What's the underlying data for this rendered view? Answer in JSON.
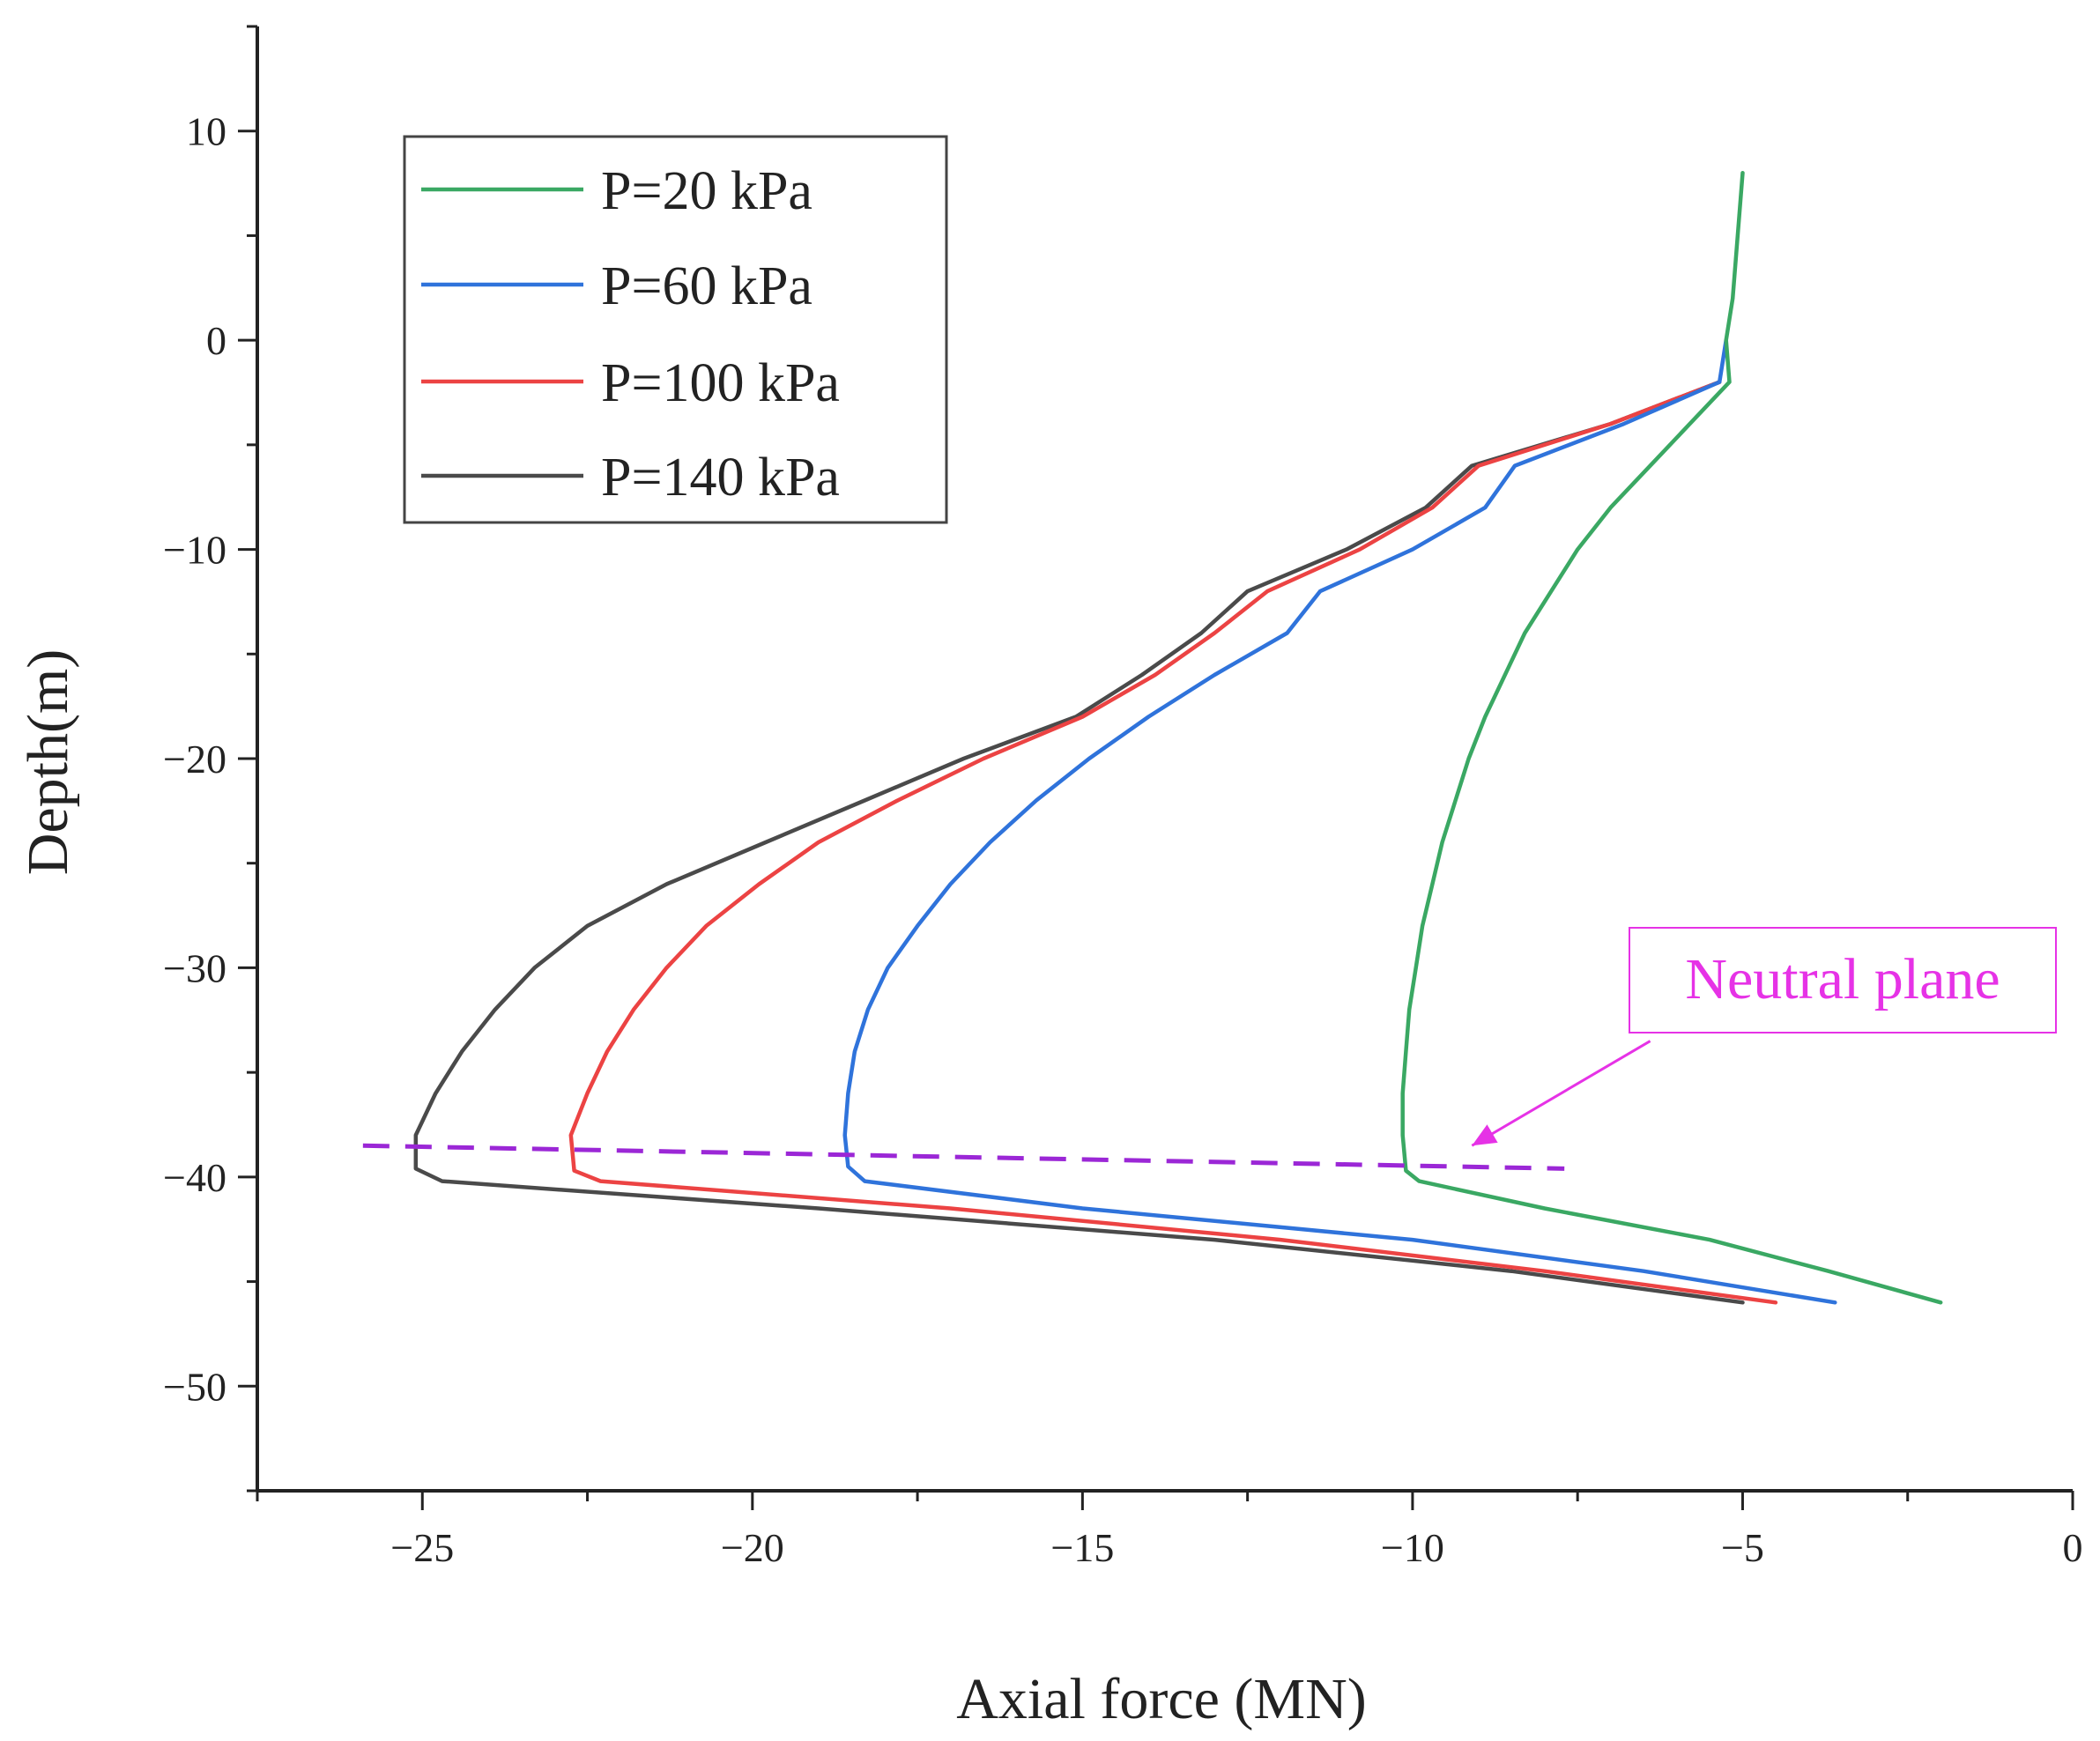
{
  "chart_data": {
    "type": "line",
    "xlabel": "Axial force (MN)",
    "ylabel": "Depth(m)",
    "xlim": [
      -27.5,
      0
    ],
    "ylim": [
      -55,
      15
    ],
    "xticks": [
      -25,
      -20,
      -15,
      -10,
      -5,
      0
    ],
    "xtick_labels": [
      "−25",
      "−20",
      "−15",
      "−10",
      "−5",
      "0"
    ],
    "yticks": [
      10,
      0,
      -10,
      -20,
      -30,
      -40,
      -50
    ],
    "ytick_labels": [
      "10",
      "0",
      "−10",
      "−20",
      "−30",
      "−40",
      "−50"
    ],
    "legend_position": "top-left",
    "series": [
      {
        "name": "P=20 kPa",
        "color": "#3aa863",
        "points": [
          [
            -5.0,
            8
          ],
          [
            -5.15,
            2
          ],
          [
            -5.25,
            0
          ],
          [
            -5.2,
            -2
          ],
          [
            -5.8,
            -4
          ],
          [
            -6.4,
            -6
          ],
          [
            -7.0,
            -8
          ],
          [
            -7.5,
            -10
          ],
          [
            -7.9,
            -12
          ],
          [
            -8.3,
            -14
          ],
          [
            -8.6,
            -16
          ],
          [
            -8.9,
            -18
          ],
          [
            -9.15,
            -20
          ],
          [
            -9.35,
            -22
          ],
          [
            -9.55,
            -24
          ],
          [
            -9.7,
            -26
          ],
          [
            -9.85,
            -28
          ],
          [
            -9.95,
            -30
          ],
          [
            -10.05,
            -32
          ],
          [
            -10.1,
            -34
          ],
          [
            -10.15,
            -36
          ],
          [
            -10.15,
            -38
          ],
          [
            -10.1,
            -39.7
          ],
          [
            -9.9,
            -40.2
          ],
          [
            -8.0,
            -41.5
          ],
          [
            -5.5,
            -43.0
          ],
          [
            -3.7,
            -44.5
          ],
          [
            -2.0,
            -46
          ]
        ]
      },
      {
        "name": "P=60 kPa",
        "color": "#2f73db",
        "points": [
          [
            -5.25,
            0
          ],
          [
            -5.35,
            -2
          ],
          [
            -6.8,
            -4
          ],
          [
            -8.45,
            -6
          ],
          [
            -8.9,
            -8
          ],
          [
            -10.0,
            -10
          ],
          [
            -11.4,
            -12
          ],
          [
            -11.9,
            -14
          ],
          [
            -13.0,
            -16
          ],
          [
            -14.0,
            -18
          ],
          [
            -14.9,
            -20
          ],
          [
            -15.7,
            -22
          ],
          [
            -16.4,
            -24
          ],
          [
            -17.0,
            -26
          ],
          [
            -17.5,
            -28
          ],
          [
            -17.95,
            -30
          ],
          [
            -18.25,
            -32
          ],
          [
            -18.45,
            -34
          ],
          [
            -18.55,
            -36
          ],
          [
            -18.6,
            -38
          ],
          [
            -18.55,
            -39.5
          ],
          [
            -18.3,
            -40.2
          ],
          [
            -15.0,
            -41.5
          ],
          [
            -10.0,
            -43.0
          ],
          [
            -6.5,
            -44.5
          ],
          [
            -3.6,
            -46
          ]
        ]
      },
      {
        "name": "P=100 kPa",
        "color": "#ec4343",
        "points": [
          [
            -5.35,
            -2
          ],
          [
            -7.0,
            -4
          ],
          [
            -9.0,
            -6
          ],
          [
            -9.7,
            -8
          ],
          [
            -10.8,
            -10
          ],
          [
            -12.2,
            -12
          ],
          [
            -13.0,
            -14
          ],
          [
            -13.9,
            -16
          ],
          [
            -15.0,
            -18
          ],
          [
            -16.5,
            -20
          ],
          [
            -17.8,
            -22
          ],
          [
            -19.0,
            -24
          ],
          [
            -19.9,
            -26
          ],
          [
            -20.7,
            -28
          ],
          [
            -21.3,
            -30
          ],
          [
            -21.8,
            -32
          ],
          [
            -22.2,
            -34
          ],
          [
            -22.5,
            -36
          ],
          [
            -22.75,
            -38
          ],
          [
            -22.7,
            -39.7
          ],
          [
            -22.3,
            -40.2
          ],
          [
            -17.0,
            -41.5
          ],
          [
            -12.0,
            -43.0
          ],
          [
            -8.0,
            -44.5
          ],
          [
            -4.5,
            -46
          ]
        ]
      },
      {
        "name": "P=140 kPa",
        "color": "#4a4a4a",
        "points": [
          [
            -5.35,
            -2
          ],
          [
            -7.0,
            -4
          ],
          [
            -9.1,
            -6
          ],
          [
            -9.8,
            -8
          ],
          [
            -11.0,
            -10
          ],
          [
            -12.5,
            -12
          ],
          [
            -13.2,
            -14
          ],
          [
            -14.1,
            -16
          ],
          [
            -15.1,
            -18
          ],
          [
            -16.8,
            -20
          ],
          [
            -18.3,
            -22
          ],
          [
            -19.8,
            -24
          ],
          [
            -21.3,
            -26
          ],
          [
            -22.5,
            -28
          ],
          [
            -23.3,
            -30
          ],
          [
            -23.9,
            -32
          ],
          [
            -24.4,
            -34
          ],
          [
            -24.8,
            -36
          ],
          [
            -25.1,
            -38
          ],
          [
            -25.1,
            -39.6
          ],
          [
            -24.7,
            -40.2
          ],
          [
            -19.0,
            -41.5
          ],
          [
            -13.0,
            -43.0
          ],
          [
            -8.5,
            -44.5
          ],
          [
            -5.0,
            -46
          ]
        ]
      }
    ],
    "neutral_plane": {
      "color": "#9b27d6",
      "points": [
        [
          -25.9,
          -38.5
        ],
        [
          -7.7,
          -39.6
        ]
      ]
    },
    "annotation": {
      "text": "Neutral plane",
      "color": "#e632e6",
      "arrow_from": [
        -6.4,
        -33.5
      ],
      "arrow_to": [
        -9.1,
        -38.5
      ]
    }
  }
}
